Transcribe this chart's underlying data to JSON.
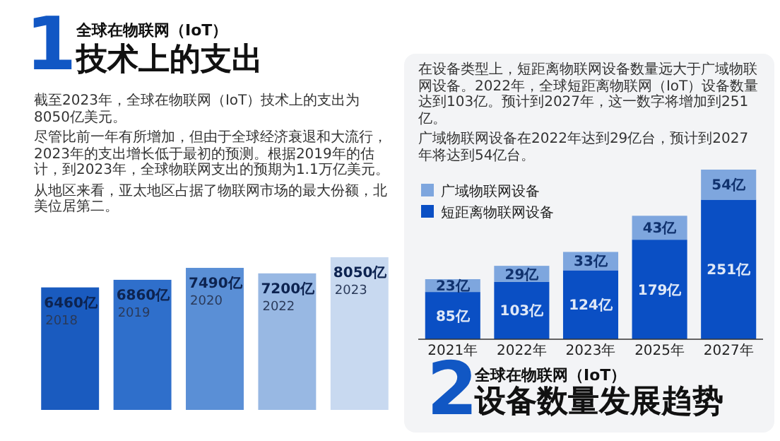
{
  "chart_data": [
    {
      "type": "bar",
      "title": "技术上的支出",
      "subtitle": "全球在物联网（IoT）",
      "annotations": [
        "1",
        "截至2023年，全球在物联网（IoT）技术上的支出为8050亿美元。",
        "尽管比前一年有所增加，但由于全球经济衰退和大流行，2023年的支出增长低于最初的预测。根据2019年的估计，到2023年，全球物联网支出的预期为1.1万亿美元。",
        "从地区来看，亚太地区占据了物联网市场的最大份额，北美位居第二。"
      ],
      "categories": [
        "2018",
        "2019",
        "2020",
        "2022",
        "2023"
      ],
      "values": [
        6460,
        6860,
        7490,
        7200,
        8050
      ],
      "value_labels": [
        "6460亿",
        "6860亿",
        "7490亿",
        "7200亿",
        "8050亿"
      ],
      "colors": [
        "#1a5bbf",
        "#2f6fcb",
        "#5a8fd6",
        "#98b8e3",
        "#c8d9f0"
      ]
    },
    {
      "type": "bar",
      "stacked": true,
      "title": "设备数量发展趋势",
      "subtitle": "全球在物联网（IoT）",
      "annotations": [
        "2",
        "在设备类型上，短距离物联网设备数量远大于广域物联网设备。2022年，全球短距离物联网（IoT）设备数量达到103亿。预计到2027年，这一数字将增加到251亿。",
        "广域物联网设备在2022年达到29亿台，预计到2027年将达到54亿台。"
      ],
      "categories": [
        "2021年",
        "2022年",
        "2023年",
        "2025年",
        "2027年"
      ],
      "series": [
        {
          "name": "短距离物联网设备",
          "color": "#0a4fc4",
          "values": [
            85,
            103,
            124,
            179,
            251
          ],
          "value_labels": [
            "85亿",
            "103亿",
            "124亿",
            "179亿",
            "251亿"
          ]
        },
        {
          "name": "广域物联网设备",
          "color": "#7ea6de",
          "values": [
            23,
            29,
            33,
            43,
            54
          ],
          "value_labels": [
            "23亿",
            "29亿",
            "33亿",
            "43亿",
            "54亿"
          ]
        }
      ],
      "legend": "top left"
    }
  ]
}
